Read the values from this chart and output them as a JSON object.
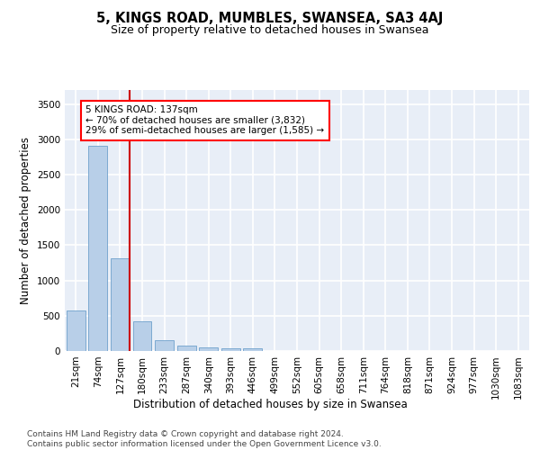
{
  "title": "5, KINGS ROAD, MUMBLES, SWANSEA, SA3 4AJ",
  "subtitle": "Size of property relative to detached houses in Swansea",
  "xlabel": "Distribution of detached houses by size in Swansea",
  "ylabel": "Number of detached properties",
  "bar_labels": [
    "21sqm",
    "74sqm",
    "127sqm",
    "180sqm",
    "233sqm",
    "287sqm",
    "340sqm",
    "393sqm",
    "446sqm",
    "499sqm",
    "552sqm",
    "605sqm",
    "658sqm",
    "711sqm",
    "764sqm",
    "818sqm",
    "871sqm",
    "924sqm",
    "977sqm",
    "1030sqm",
    "1083sqm"
  ],
  "bar_values": [
    570,
    2910,
    1310,
    415,
    155,
    75,
    50,
    40,
    40,
    0,
    0,
    0,
    0,
    0,
    0,
    0,
    0,
    0,
    0,
    0,
    0
  ],
  "bar_color": "#b8cfe8",
  "bar_edge_color": "#6fa0cc",
  "vline_color": "#cc0000",
  "annotation_text": "5 KINGS ROAD: 137sqm\n← 70% of detached houses are smaller (3,832)\n29% of semi-detached houses are larger (1,585) →",
  "ylim": [
    0,
    3700
  ],
  "plot_background": "#e8eef7",
  "grid_color": "#ffffff",
  "footer": "Contains HM Land Registry data © Crown copyright and database right 2024.\nContains public sector information licensed under the Open Government Licence v3.0.",
  "title_fontsize": 10.5,
  "subtitle_fontsize": 9,
  "axis_label_fontsize": 8.5,
  "tick_fontsize": 7.5,
  "footer_fontsize": 6.5
}
